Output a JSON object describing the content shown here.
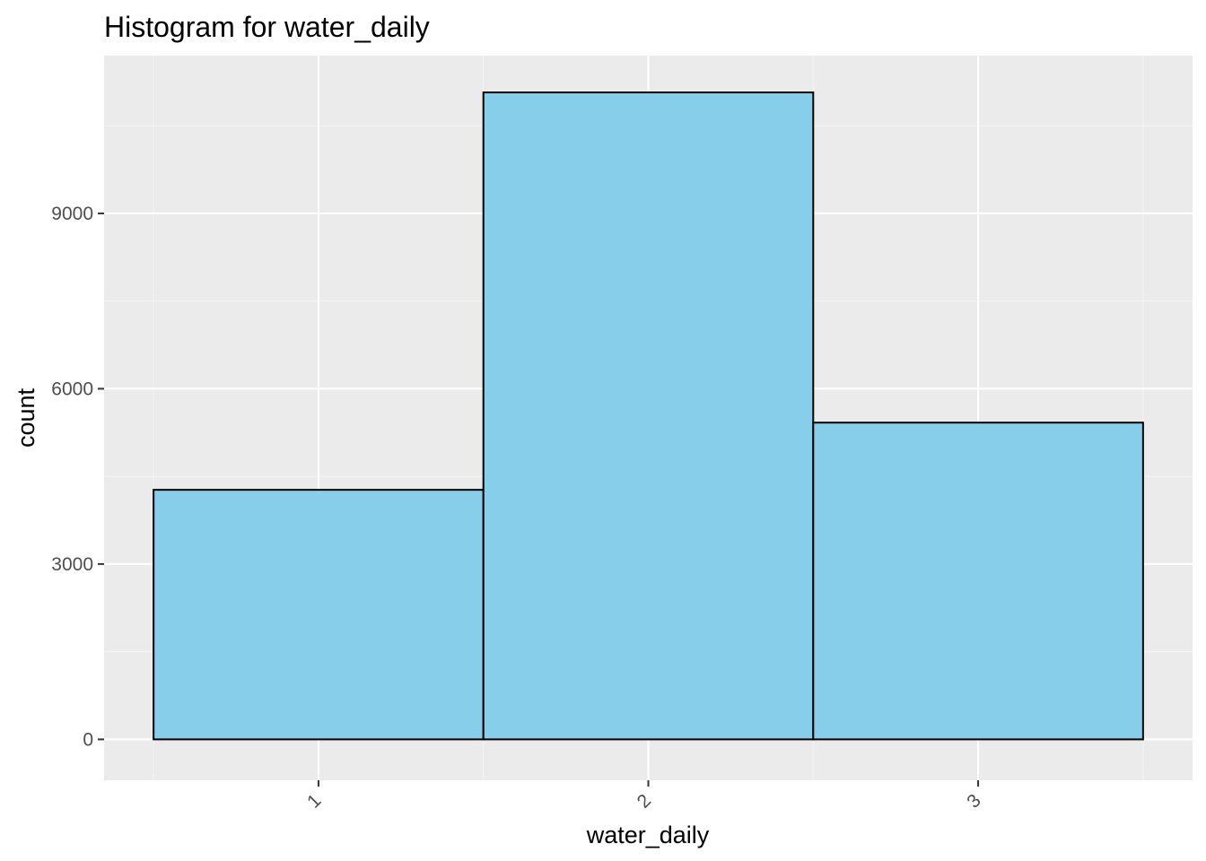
{
  "chart_data": {
    "type": "bar",
    "title": "Histogram for water_daily",
    "xlabel": "water_daily",
    "ylabel": "count",
    "categories": [
      "1",
      "2",
      "3"
    ],
    "values": [
      4270,
      11070,
      5420
    ],
    "xlim": [
      0.35,
      3.65
    ],
    "ylim": [
      -700,
      11700
    ],
    "y_ticks": [
      0,
      3000,
      6000,
      9000
    ],
    "y_tick_labels": [
      "0",
      "3000",
      "6000",
      "9000"
    ],
    "x_tick_labels": [
      "1",
      "2",
      "3"
    ],
    "grid": true,
    "legend": "none",
    "colors": {
      "bar_fill": "#87ceeb",
      "bar_stroke": "#000000",
      "panel_background": "#ebebeb",
      "grid_major": "#ffffff",
      "grid_minor": "#f5f5f5",
      "tick_label": "#4d4d4d"
    }
  }
}
